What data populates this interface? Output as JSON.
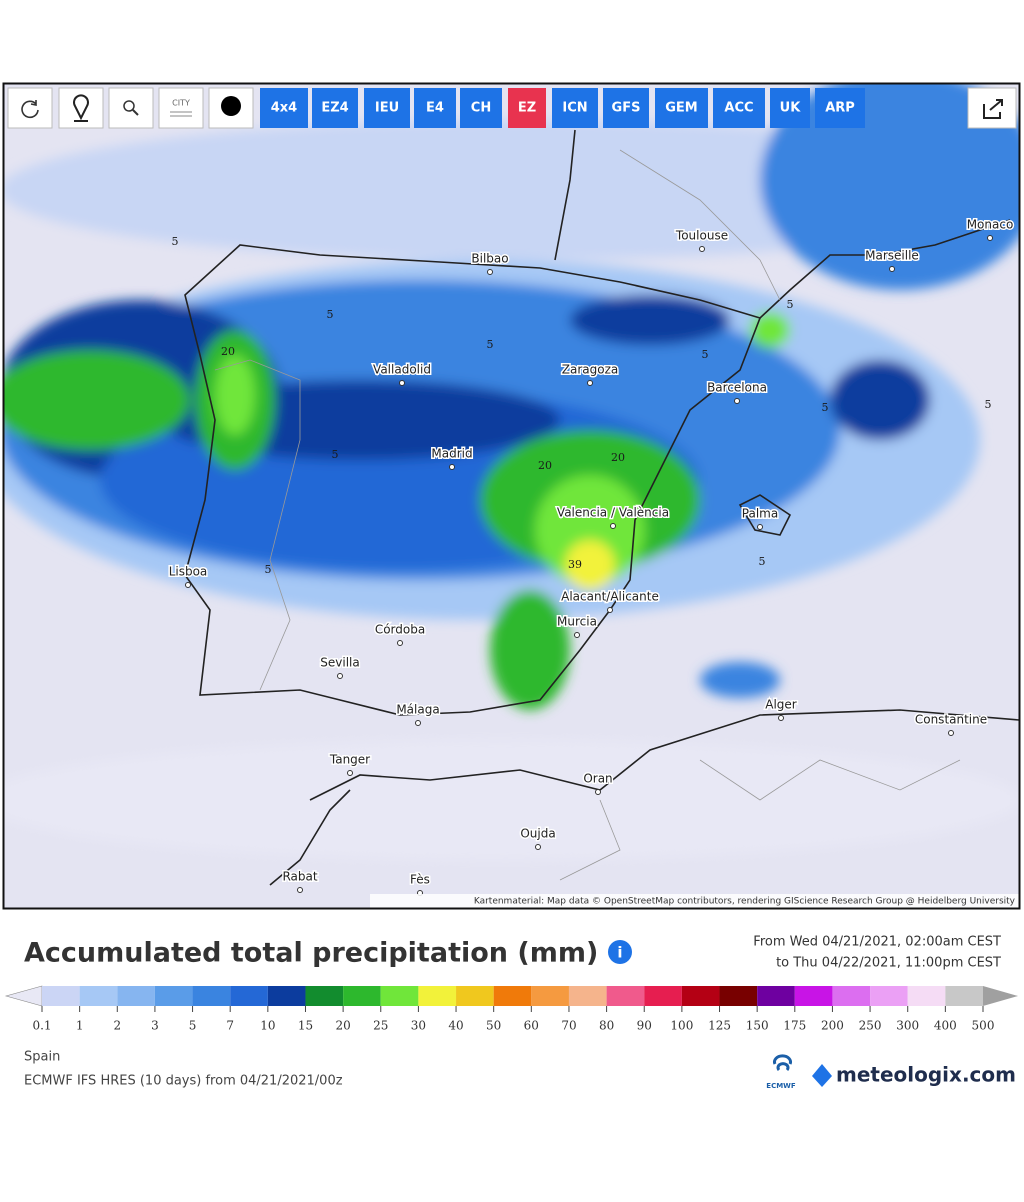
{
  "toolbar": {
    "city_icon": "CITY",
    "models": [
      "4x4",
      "EZ4",
      "IEU",
      "E4",
      "CH",
      "EZ",
      "ICN",
      "GFS",
      "GEM",
      "ACC",
      "UK",
      "ARP"
    ],
    "active_model": "EZ"
  },
  "map": {
    "cities": [
      "Bilbao",
      "Toulouse",
      "Marseille",
      "Monaco",
      "Valladolid",
      "Zaragoza",
      "Barcelona",
      "Madrid",
      "Valencia / València",
      "Palma",
      "Lisboa",
      "Alacant/Alicante",
      "Murcia",
      "Córdoba",
      "Sevilla",
      "Málaga",
      "Alger",
      "Constantine",
      "Tanger",
      "Oran",
      "Oujda",
      "Rabat",
      "Fès"
    ],
    "contour_labels": [
      20,
      20,
      20,
      39,
      5,
      5,
      5,
      5,
      5,
      5,
      5,
      5,
      5,
      5
    ],
    "attribution": "Kartenmaterial: Map data © OpenStreetMap contributors, rendering GIScience Research Group @ Heidelberg University"
  },
  "header": {
    "title": "Accumulated total precipitation (mm)",
    "from": "From Wed 04/21/2021, 02:00am CEST",
    "to": "to Thu 04/22/2021, 11:00pm CEST"
  },
  "legend": {
    "labels": [
      0.1,
      1,
      2,
      3,
      5,
      7,
      10,
      15,
      20,
      25,
      30,
      40,
      50,
      60,
      70,
      80,
      90,
      100,
      125,
      150,
      175,
      200,
      250,
      300,
      400,
      500
    ],
    "colors": [
      "#cbd5f5",
      "#a6c8f5",
      "#86b5f0",
      "#5a9ce8",
      "#3a84e0",
      "#2468d6",
      "#0c3c9e",
      "#128c2e",
      "#2db82d",
      "#70e63a",
      "#f2f23a",
      "#f0c81e",
      "#f07a0a",
      "#f59a40",
      "#f5b48c",
      "#f05a8c",
      "#e61e50",
      "#b40014",
      "#780000",
      "#6e00a0",
      "#c814e6",
      "#dc6ef0",
      "#eba0f5",
      "#f5dcf5",
      "#c8c8c8"
    ],
    "low_color": "#e8e8f5",
    "high_color": "#a0a0a0"
  },
  "footer": {
    "region": "Spain",
    "model_run": "ECMWF IFS HRES (10 days) from 04/21/2021/00z",
    "ecmwf": "ECMWF",
    "brand": "meteologix.com"
  }
}
